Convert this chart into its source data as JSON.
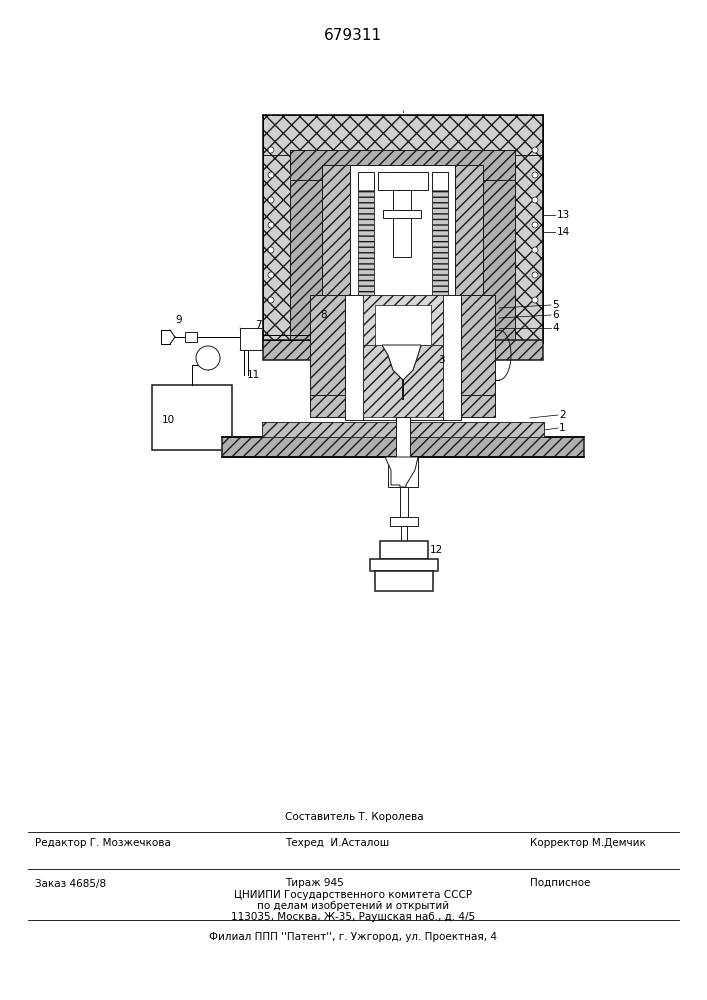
{
  "patent_number": "679311",
  "bg_color": "#ffffff",
  "fig_width": 7.07,
  "fig_height": 10.0,
  "footer": {
    "editor_label": "Редактор Г. Мозжечкова",
    "composer_line1": "Составитель Т. Королева",
    "composer_line2": "Техред  И.Асталош",
    "corrector": "Корректор М.Демчик",
    "order": "Заказ 4685/8",
    "tirazh": "Тираж 945",
    "podpisnoe": "Подписное",
    "org_line1": "ЦНИИПИ Государственного комитета СССР",
    "org_line2": "по делам изобретений и открытий",
    "org_line3": "113035, Москва, Ж-35, Раушская наб., д. 4/5",
    "filial": "Филиал ППП ''Патент'', г. Ужгород, ул. Проектная, 4"
  }
}
